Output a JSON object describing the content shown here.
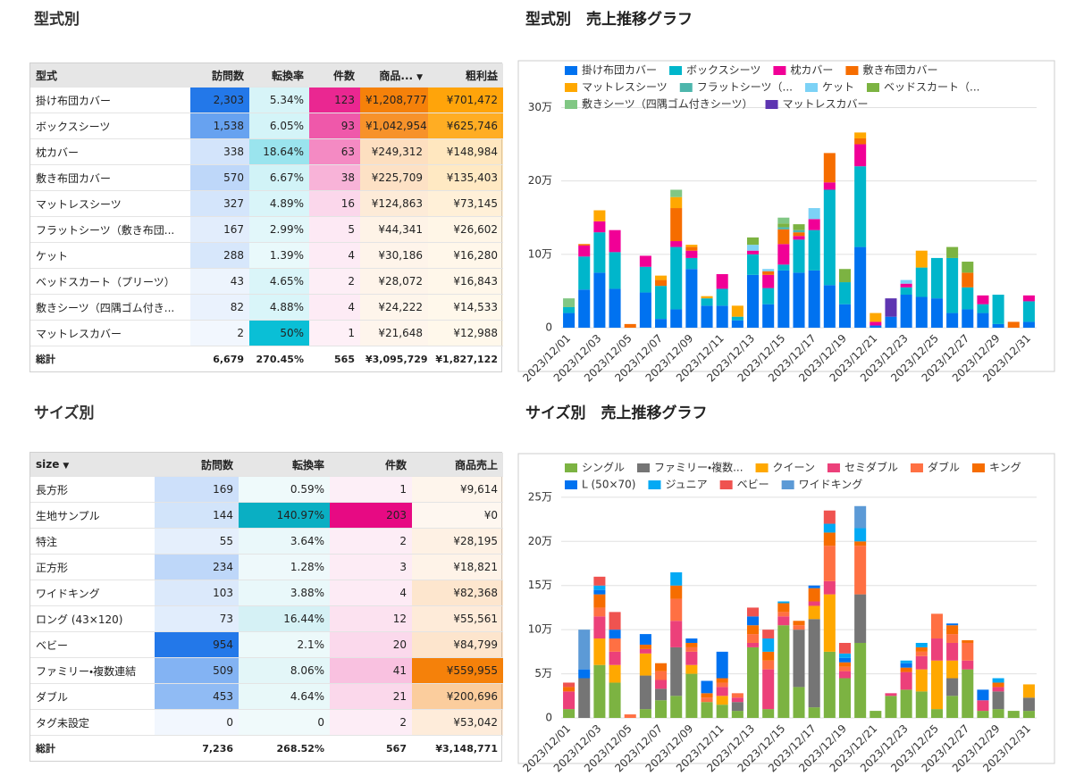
{
  "type_table": {
    "title": "型式別",
    "columns": [
      "型式",
      "訪問数",
      "転換率",
      "件数",
      "商品...",
      "粗利益"
    ],
    "sort_column": 4,
    "column_colors": [
      null,
      "#1a73e8",
      "#00bcd4",
      "#e91e8c",
      "#f57c00",
      "#ffa000"
    ],
    "rows": [
      [
        "掛け布団カバー",
        "2,303",
        "5.34%",
        "123",
        "¥1,208,777",
        "¥701,472"
      ],
      [
        "ボックスシーツ",
        "1,538",
        "6.05%",
        "93",
        "¥1,042,954",
        "¥625,746"
      ],
      [
        "枕カバー",
        "338",
        "18.64%",
        "63",
        "¥249,312",
        "¥148,984"
      ],
      [
        "敷き布団カバー",
        "570",
        "6.67%",
        "38",
        "¥225,709",
        "¥135,403"
      ],
      [
        "マットレスシーツ",
        "327",
        "4.89%",
        "16",
        "¥124,863",
        "¥73,145"
      ],
      [
        "フラットシーツ（敷き布団...",
        "167",
        "2.99%",
        "5",
        "¥44,341",
        "¥26,602"
      ],
      [
        "ケット",
        "288",
        "1.39%",
        "4",
        "¥30,186",
        "¥16,280"
      ],
      [
        "ベッドスカート（プリーツ）",
        "43",
        "4.65%",
        "2",
        "¥28,072",
        "¥16,843"
      ],
      [
        "敷きシーツ（四隅ゴム付き...",
        "82",
        "4.88%",
        "4",
        "¥24,222",
        "¥14,533"
      ],
      [
        "マットレスカバー",
        "2",
        "50%",
        "1",
        "¥21,648",
        "¥12,988"
      ]
    ],
    "total": [
      "総計",
      "6,679",
      "270.45%",
      "565",
      "¥3,095,729",
      "¥1,827,122"
    ]
  },
  "size_table": {
    "title": "サイズ別",
    "columns": [
      "size",
      "訪問数",
      "転換率",
      "件数",
      "商品売上"
    ],
    "sort_column": 0,
    "column_colors": [
      null,
      "#1a73e8",
      "#00acc1",
      "#e6007e",
      "#f57c00"
    ],
    "rows": [
      [
        "長方形",
        "169",
        "0.59%",
        "1",
        "¥9,614"
      ],
      [
        "生地サンプル",
        "144",
        "140.97%",
        "203",
        "¥0"
      ],
      [
        "特注",
        "55",
        "3.64%",
        "2",
        "¥28,195"
      ],
      [
        "正方形",
        "234",
        "1.28%",
        "3",
        "¥18,821"
      ],
      [
        "ワイドキング",
        "103",
        "3.88%",
        "4",
        "¥82,368"
      ],
      [
        "ロング (43×120)",
        "73",
        "16.44%",
        "12",
        "¥55,561"
      ],
      [
        "ベビー",
        "954",
        "2.1%",
        "20",
        "¥84,799"
      ],
      [
        "ファミリー・複数連結",
        "509",
        "8.06%",
        "41",
        "¥559,955"
      ],
      [
        "ダブル",
        "453",
        "4.64%",
        "21",
        "¥200,696"
      ],
      [
        "タグ未設定",
        "0",
        "0",
        "2",
        "¥53,042"
      ]
    ],
    "total": [
      "総計",
      "7,236",
      "268.52%",
      "567",
      "¥3,148,771"
    ]
  },
  "chart_data": [
    {
      "type": "bar",
      "stacked": true,
      "grid": true,
      "legend": "top",
      "title": "型式別　売上推移グラフ",
      "categories": [
        "2023/12/01",
        null,
        "2023/12/03",
        null,
        "2023/12/05",
        null,
        "2023/12/07",
        null,
        "2023/12/09",
        null,
        "2023/12/11",
        null,
        "2023/12/13",
        null,
        "2023/12/15",
        null,
        "2023/12/17",
        null,
        "2023/12/19",
        null,
        "2023/12/21",
        null,
        "2023/12/23",
        null,
        "2023/12/25",
        null,
        "2023/12/27",
        null,
        "2023/12/29",
        null,
        "2023/12/31"
      ],
      "ylim": [
        0,
        320000
      ],
      "yticks": [
        0,
        {
          "value": 100000,
          "label": "10万"
        },
        {
          "value": 200000,
          "label": "20万"
        },
        {
          "value": 300000,
          "label": "30万"
        }
      ],
      "series": [
        {
          "name": "掛け布団カバー",
          "color": "#0072f0",
          "values": [
            20000,
            52000,
            75000,
            53000,
            0,
            48000,
            12000,
            25000,
            80000,
            30000,
            30000,
            10000,
            72000,
            32000,
            78000,
            75000,
            78000,
            58000,
            32000,
            110000,
            3000,
            15000,
            45000,
            42000,
            40000,
            20000,
            25000,
            20000,
            5000,
            0,
            8000
          ]
        },
        {
          "name": "ボックスシーツ",
          "color": "#00b6cb",
          "values": [
            8000,
            45000,
            55000,
            50000,
            0,
            35000,
            45000,
            85000,
            15000,
            10000,
            23000,
            5000,
            28000,
            22000,
            8000,
            45000,
            55000,
            130000,
            30000,
            110000,
            0,
            0,
            10000,
            40000,
            55000,
            75000,
            30000,
            12000,
            40000,
            0,
            28000
          ]
        },
        {
          "name": "枕カバー",
          "color": "#f10096",
          "values": [
            0,
            15000,
            15000,
            30000,
            0,
            15000,
            0,
            8000,
            10000,
            0,
            20000,
            0,
            5000,
            18000,
            28000,
            5000,
            15000,
            10000,
            0,
            30000,
            5000,
            0,
            5000,
            0,
            0,
            0,
            0,
            12000,
            0,
            0,
            8000
          ]
        },
        {
          "name": "敷き布団カバー",
          "color": "#f66d00",
          "values": [
            0,
            2000,
            0,
            0,
            5000,
            0,
            8000,
            45000,
            5000,
            0,
            0,
            0,
            0,
            5000,
            20000,
            5000,
            0,
            40000,
            0,
            8000,
            0,
            0,
            0,
            0,
            0,
            0,
            20000,
            0,
            0,
            8000,
            0
          ]
        },
        {
          "name": "マットレスシーツ",
          "color": "#ffa800",
          "values": [
            0,
            0,
            15000,
            0,
            0,
            0,
            6000,
            15000,
            3000,
            3000,
            0,
            15000,
            0,
            0,
            0,
            0,
            0,
            0,
            0,
            8000,
            12000,
            0,
            0,
            23000,
            0,
            0,
            0,
            0,
            0,
            0,
            0
          ]
        },
        {
          "name": "フラットシーツ（...",
          "color": "#4db6ac",
          "values": [
            0,
            0,
            0,
            0,
            0,
            0,
            0,
            0,
            0,
            0,
            0,
            0,
            0,
            0,
            3000,
            3000,
            0,
            0,
            0,
            0,
            0,
            0,
            0,
            0,
            0,
            0,
            0,
            0,
            0,
            0,
            0
          ]
        },
        {
          "name": "ケット",
          "color": "#7cd2f6",
          "values": [
            0,
            0,
            0,
            0,
            0,
            0,
            0,
            0,
            0,
            0,
            0,
            0,
            8000,
            3000,
            0,
            0,
            15000,
            0,
            0,
            0,
            0,
            0,
            5000,
            0,
            0,
            0,
            0,
            0,
            0,
            0,
            0
          ]
        },
        {
          "name": "ベッドスカート（...",
          "color": "#7cb342",
          "values": [
            0,
            0,
            0,
            0,
            0,
            0,
            0,
            0,
            0,
            0,
            0,
            0,
            10000,
            0,
            5000,
            8000,
            0,
            0,
            18000,
            0,
            0,
            0,
            0,
            0,
            0,
            15000,
            15000,
            0,
            0,
            0,
            0
          ]
        },
        {
          "name": "敷きシーツ（四隅ゴム付きシーツ）",
          "color": "#81c784",
          "values": [
            12000,
            0,
            0,
            0,
            0,
            0,
            0,
            10000,
            0,
            0,
            0,
            0,
            0,
            0,
            8000,
            0,
            0,
            0,
            0,
            0,
            0,
            0,
            0,
            0,
            0,
            0,
            0,
            0,
            0,
            0,
            0
          ]
        },
        {
          "name": "マットレスカバー",
          "color": "#5e35b1",
          "values": [
            0,
            0,
            0,
            0,
            0,
            0,
            0,
            0,
            0,
            0,
            0,
            0,
            0,
            0,
            0,
            0,
            0,
            0,
            0,
            0,
            0,
            25000,
            0,
            0,
            0,
            0,
            0,
            0,
            0,
            0,
            0
          ]
        }
      ]
    },
    {
      "type": "bar",
      "stacked": true,
      "grid": true,
      "legend": "top",
      "title": "サイズ別　売上推移グラフ",
      "categories": [
        "2023/12/01",
        null,
        "2023/12/03",
        null,
        "2023/12/05",
        null,
        "2023/12/07",
        null,
        "2023/12/09",
        null,
        "2023/12/11",
        null,
        "2023/12/13",
        null,
        "2023/12/15",
        null,
        "2023/12/17",
        null,
        "2023/12/19",
        null,
        "2023/12/21",
        null,
        "2023/12/23",
        null,
        "2023/12/25",
        null,
        "2023/12/27",
        null,
        "2023/12/29",
        null,
        "2023/12/31"
      ],
      "ylim": [
        0,
        260000
      ],
      "yticks": [
        0,
        {
          "value": 50000,
          "label": "5万"
        },
        {
          "value": 100000,
          "label": "10万"
        },
        {
          "value": 150000,
          "label": "15万"
        },
        {
          "value": 200000,
          "label": "20万"
        },
        {
          "value": 250000,
          "label": "25万"
        }
      ],
      "series": [
        {
          "name": "シングル",
          "color": "#7cb342",
          "values": [
            10000,
            0,
            60000,
            40000,
            0,
            10000,
            20000,
            25000,
            50000,
            18000,
            15000,
            8000,
            80000,
            10000,
            105000,
            35000,
            12000,
            75000,
            45000,
            85000,
            8000,
            25000,
            32000,
            30000,
            10000,
            25000,
            55000,
            8000,
            10000,
            8000,
            8000
          ]
        },
        {
          "name": "ファミリー・複数...",
          "color": "#757575",
          "values": [
            0,
            45000,
            0,
            0,
            0,
            38000,
            13000,
            55000,
            0,
            0,
            0,
            10000,
            0,
            0,
            0,
            65000,
            100000,
            0,
            0,
            55000,
            0,
            0,
            0,
            0,
            0,
            20000,
            0,
            0,
            20000,
            0,
            15000
          ]
        },
        {
          "name": "クイーン",
          "color": "#ffa800",
          "values": [
            0,
            0,
            30000,
            20000,
            0,
            25000,
            0,
            0,
            10000,
            0,
            10000,
            0,
            0,
            0,
            0,
            0,
            15000,
            65000,
            0,
            0,
            0,
            0,
            0,
            25000,
            55000,
            20000,
            0,
            0,
            0,
            0,
            15000
          ]
        },
        {
          "name": "セミダブル",
          "color": "#ec407a",
          "values": [
            20000,
            0,
            25000,
            15000,
            0,
            5000,
            10000,
            30000,
            15000,
            0,
            10000,
            5000,
            5000,
            45000,
            10000,
            0,
            5000,
            15000,
            8000,
            0,
            0,
            3000,
            20000,
            15000,
            25000,
            20000,
            10000,
            12000,
            5000,
            0,
            0
          ]
        },
        {
          "name": "ダブル",
          "color": "#ff7043",
          "values": [
            0,
            0,
            10000,
            15000,
            4000,
            0,
            10000,
            25000,
            5000,
            5000,
            5000,
            5000,
            10000,
            10000,
            5000,
            5000,
            0,
            40000,
            5000,
            55000,
            0,
            0,
            0,
            5000,
            28000,
            10000,
            20000,
            0,
            0,
            0,
            0
          ]
        },
        {
          "name": "キング",
          "color": "#f66d00",
          "values": [
            5000,
            0,
            15000,
            0,
            0,
            5000,
            9000,
            15000,
            5000,
            5000,
            5000,
            0,
            10000,
            10000,
            10000,
            5000,
            15000,
            15000,
            5000,
            5000,
            0,
            0,
            5000,
            5000,
            0,
            10000,
            3000,
            0,
            5000,
            0,
            0
          ]
        },
        {
          "name": "L (50×70)",
          "color": "#0072f0",
          "values": [
            0,
            10000,
            5000,
            10000,
            0,
            12000,
            0,
            0,
            5000,
            14000,
            30000,
            0,
            10000,
            0,
            0,
            0,
            3000,
            0,
            5000,
            0,
            0,
            0,
            5000,
            0,
            0,
            2000,
            0,
            12000,
            0,
            0,
            0
          ]
        },
        {
          "name": "ジュニア",
          "color": "#03a9f4",
          "values": [
            0,
            0,
            5000,
            0,
            0,
            0,
            0,
            15000,
            0,
            0,
            0,
            0,
            0,
            15000,
            2000,
            0,
            0,
            10000,
            5000,
            15000,
            0,
            0,
            3000,
            5000,
            0,
            0,
            0,
            0,
            5000,
            0,
            0
          ]
        },
        {
          "name": "ベビー",
          "color": "#ef5350",
          "values": [
            5000,
            0,
            10000,
            20000,
            0,
            0,
            0,
            0,
            0,
            0,
            0,
            0,
            10000,
            10000,
            0,
            0,
            0,
            15000,
            12000,
            0,
            0,
            0,
            0,
            0,
            0,
            0,
            0,
            0,
            0,
            0,
            0
          ]
        },
        {
          "name": "ワイドキング",
          "color": "#5c9ad6",
          "values": [
            0,
            45000,
            0,
            0,
            0,
            0,
            0,
            0,
            0,
            0,
            0,
            0,
            0,
            0,
            0,
            0,
            0,
            0,
            0,
            25000,
            0,
            0,
            0,
            0,
            0,
            0,
            0,
            0,
            0,
            0,
            0
          ]
        }
      ]
    }
  ]
}
